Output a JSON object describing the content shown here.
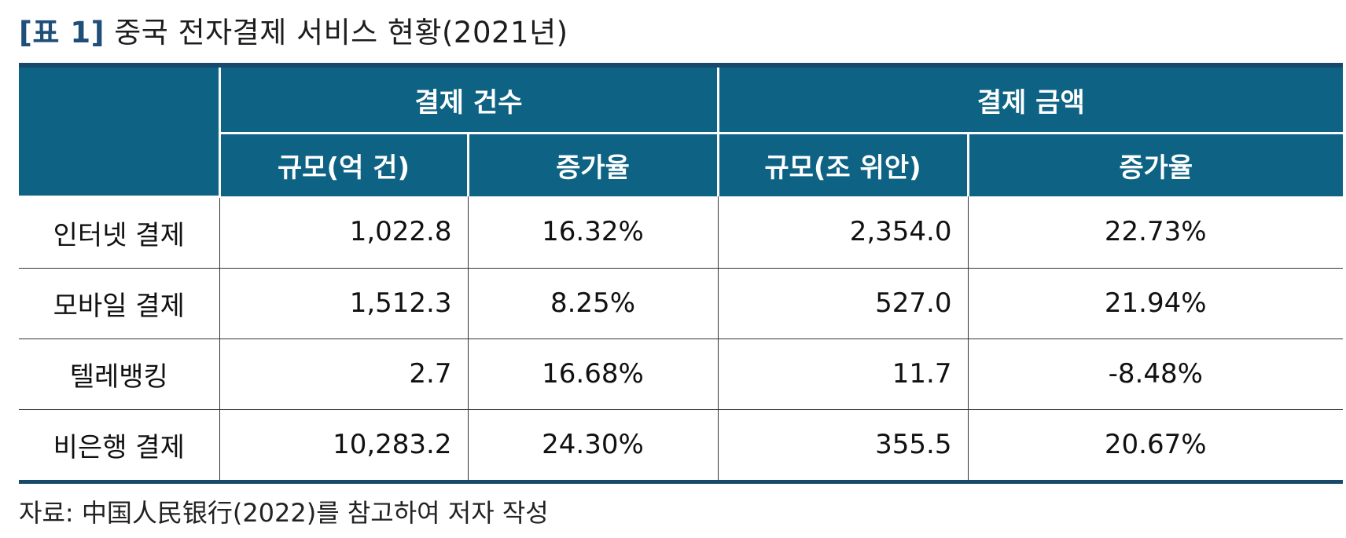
{
  "title": {
    "label": "[표 1]",
    "text": "중국 전자결제 서비스 현황(2021년)"
  },
  "table": {
    "group_headers": [
      "결제 건수",
      "결제 금액"
    ],
    "sub_headers": [
      "규모(억 건)",
      "증가율",
      "규모(조 위안)",
      "증가율"
    ],
    "rows": [
      {
        "label": "인터넷 결제",
        "count": "1,022.8",
        "count_growth": "16.32%",
        "amount": "2,354.0",
        "amount_growth": "22.73%"
      },
      {
        "label": "모바일 결제",
        "count": "1,512.3",
        "count_growth": "8.25%",
        "amount": "527.0",
        "amount_growth": "21.94%"
      },
      {
        "label": "텔레뱅킹",
        "count": "2.7",
        "count_growth": "16.68%",
        "amount": "11.7",
        "amount_growth": "-8.48%"
      },
      {
        "label": "비은행 결제",
        "count": "10,283.2",
        "count_growth": "24.30%",
        "amount": "355.5",
        "amount_growth": "20.67%"
      }
    ]
  },
  "source": "자료: 中国人民银行(2022)를 참고하여 저자 작성",
  "colors": {
    "header_bg": "#0e6385",
    "rule": "#174a6a",
    "header_text": "#ffffff"
  }
}
